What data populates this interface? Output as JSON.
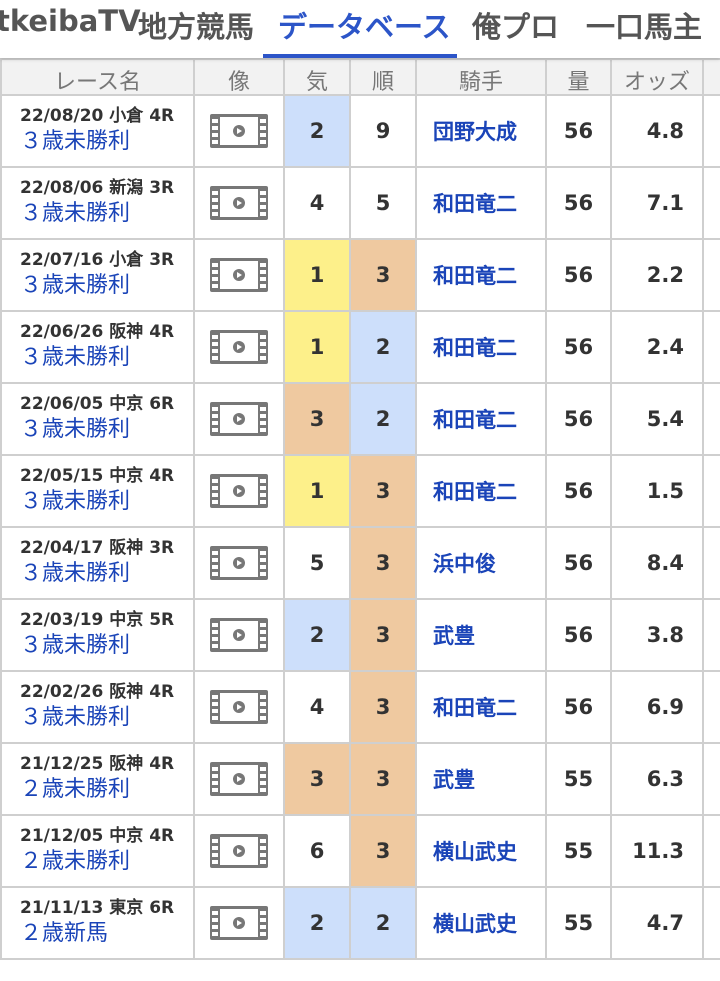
{
  "tabs": [
    {
      "label": "tkeibaTV",
      "active": false
    },
    {
      "label": "地方競馬",
      "active": false
    },
    {
      "label": "データベース",
      "active": true
    },
    {
      "label": "俺プロ",
      "active": false
    },
    {
      "label": "一口馬主",
      "active": false
    }
  ],
  "colors": {
    "accent": "#2c55c8",
    "link": "#1a44b8",
    "first": "#fdf08a",
    "second": "#cddffb",
    "third": "#efc9a0"
  },
  "headers": {
    "race": "レース名",
    "video": "像",
    "pop": "気",
    "rank": "順",
    "jockey": "騎手",
    "weight": "量",
    "odds": "オッズ"
  },
  "video_icon": "film-play-icon",
  "rows": [
    {
      "meta": "22/08/20 小倉 4R",
      "race": "３歳未勝利",
      "pop": "2",
      "rank": "9",
      "jockey": "団野大成",
      "weight": "56",
      "odds": "4.8"
    },
    {
      "meta": "22/08/06 新潟 3R",
      "race": "３歳未勝利",
      "pop": "4",
      "rank": "5",
      "jockey": "和田竜二",
      "weight": "56",
      "odds": "7.1"
    },
    {
      "meta": "22/07/16 小倉 3R",
      "race": "３歳未勝利",
      "pop": "1",
      "rank": "3",
      "jockey": "和田竜二",
      "weight": "56",
      "odds": "2.2"
    },
    {
      "meta": "22/06/26 阪神 4R",
      "race": "３歳未勝利",
      "pop": "1",
      "rank": "2",
      "jockey": "和田竜二",
      "weight": "56",
      "odds": "2.4"
    },
    {
      "meta": "22/06/05 中京 6R",
      "race": "３歳未勝利",
      "pop": "3",
      "rank": "2",
      "jockey": "和田竜二",
      "weight": "56",
      "odds": "5.4"
    },
    {
      "meta": "22/05/15 中京 4R",
      "race": "３歳未勝利",
      "pop": "1",
      "rank": "3",
      "jockey": "和田竜二",
      "weight": "56",
      "odds": "1.5"
    },
    {
      "meta": "22/04/17 阪神 3R",
      "race": "３歳未勝利",
      "pop": "5",
      "rank": "3",
      "jockey": "浜中俊",
      "weight": "56",
      "odds": "8.4"
    },
    {
      "meta": "22/03/19 中京 5R",
      "race": "３歳未勝利",
      "pop": "2",
      "rank": "3",
      "jockey": "武豊",
      "weight": "56",
      "odds": "3.8"
    },
    {
      "meta": "22/02/26 阪神 4R",
      "race": "３歳未勝利",
      "pop": "4",
      "rank": "3",
      "jockey": "和田竜二",
      "weight": "56",
      "odds": "6.9"
    },
    {
      "meta": "21/12/25 阪神 4R",
      "race": "２歳未勝利",
      "pop": "3",
      "rank": "3",
      "jockey": "武豊",
      "weight": "55",
      "odds": "6.3"
    },
    {
      "meta": "21/12/05 中京 4R",
      "race": "２歳未勝利",
      "pop": "6",
      "rank": "3",
      "jockey": "横山武史",
      "weight": "55",
      "odds": "11.3"
    },
    {
      "meta": "21/11/13 東京 6R",
      "race": "２歳新馬",
      "pop": "2",
      "rank": "2",
      "jockey": "横山武史",
      "weight": "55",
      "odds": "4.7"
    }
  ]
}
